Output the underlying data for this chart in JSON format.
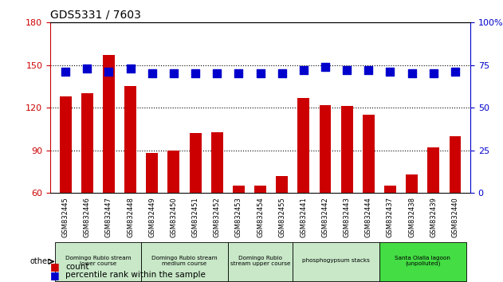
{
  "title": "GDS5331 / 7603",
  "samples": [
    "GSM832445",
    "GSM832446",
    "GSM832447",
    "GSM832448",
    "GSM832449",
    "GSM832450",
    "GSM832451",
    "GSM832452",
    "GSM832453",
    "GSM832454",
    "GSM832455",
    "GSM832441",
    "GSM832442",
    "GSM832443",
    "GSM832444",
    "GSM832437",
    "GSM832438",
    "GSM832439",
    "GSM832440"
  ],
  "counts": [
    128,
    130,
    157,
    135,
    88,
    90,
    102,
    103,
    65,
    65,
    72,
    127,
    122,
    121,
    115,
    65,
    73,
    92,
    100
  ],
  "percentiles": [
    71,
    73,
    71,
    73,
    70,
    70,
    70,
    70,
    70,
    70,
    70,
    72,
    74,
    72,
    72,
    71,
    70,
    70,
    71
  ],
  "bar_color": "#cc0000",
  "dot_color": "#0000cc",
  "ylim_left": [
    60,
    180
  ],
  "ylim_right": [
    0,
    100
  ],
  "yticks_left": [
    60,
    90,
    120,
    150,
    180
  ],
  "yticks_right": [
    0,
    25,
    50,
    75,
    100
  ],
  "groups": [
    {
      "label": "Domingo Rubio stream\nlower course",
      "start": 0,
      "end": 3,
      "color": "#c8e8c8"
    },
    {
      "label": "Domingo Rubio stream\nmedium course",
      "start": 4,
      "end": 7,
      "color": "#c8e8c8"
    },
    {
      "label": "Domingo Rubio\nstream upper course",
      "start": 8,
      "end": 10,
      "color": "#c8e8c8"
    },
    {
      "label": "phosphogypsum stacks",
      "start": 11,
      "end": 14,
      "color": "#c8e8c8"
    },
    {
      "label": "Santa Olalla lagoon\n(unpolluted)",
      "start": 15,
      "end": 18,
      "color": "#44dd44"
    }
  ],
  "bar_width": 0.55,
  "dot_size": 45,
  "dot_marker": "s",
  "bg_color": "#ffffff",
  "tick_label_bg": "#cccccc",
  "other_label": "other"
}
